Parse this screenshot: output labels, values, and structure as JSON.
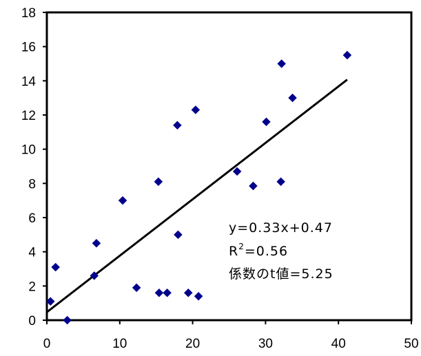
{
  "chart_data": {
    "type": "scatter",
    "title": "",
    "xlabel": "",
    "ylabel": "",
    "xlim": [
      0,
      50
    ],
    "ylim": [
      0,
      18
    ],
    "x_ticks": [
      "0",
      "10",
      "20",
      "30",
      "40",
      "50"
    ],
    "y_ticks": [
      "0",
      "2",
      "4",
      "6",
      "8",
      "10",
      "12",
      "14",
      "16",
      "18"
    ],
    "grid": false,
    "legend": "none",
    "marker_color": "#00008B",
    "marker_shape": "diamond",
    "series": [
      {
        "points": [
          [
            0.5,
            1.1
          ],
          [
            1.2,
            3.1
          ],
          [
            2.8,
            0.0
          ],
          [
            6.5,
            2.6
          ],
          [
            6.8,
            4.5
          ],
          [
            10.4,
            7.0
          ],
          [
            12.3,
            1.9
          ],
          [
            15.3,
            8.1
          ],
          [
            15.4,
            1.6
          ],
          [
            16.5,
            1.6
          ],
          [
            17.9,
            11.4
          ],
          [
            18.0,
            5.0
          ],
          [
            19.4,
            1.6
          ],
          [
            20.4,
            12.3
          ],
          [
            20.8,
            1.4
          ],
          [
            26.1,
            8.7
          ],
          [
            28.3,
            7.85
          ],
          [
            30.1,
            11.6
          ],
          [
            32.1,
            8.1
          ],
          [
            32.2,
            15.0
          ],
          [
            33.7,
            13.0
          ],
          [
            41.2,
            15.5
          ]
        ]
      }
    ],
    "trendline": {
      "slope": 0.33,
      "intercept": 0.47,
      "x_range": [
        0,
        41.2
      ],
      "color": "#000000"
    },
    "annotations": {
      "equation": "y=0.33x+0.47",
      "r2_prefix": "R",
      "r2_sup": "2",
      "r2_value": "=0.56",
      "t_value": "係数のt値=5.25"
    }
  }
}
